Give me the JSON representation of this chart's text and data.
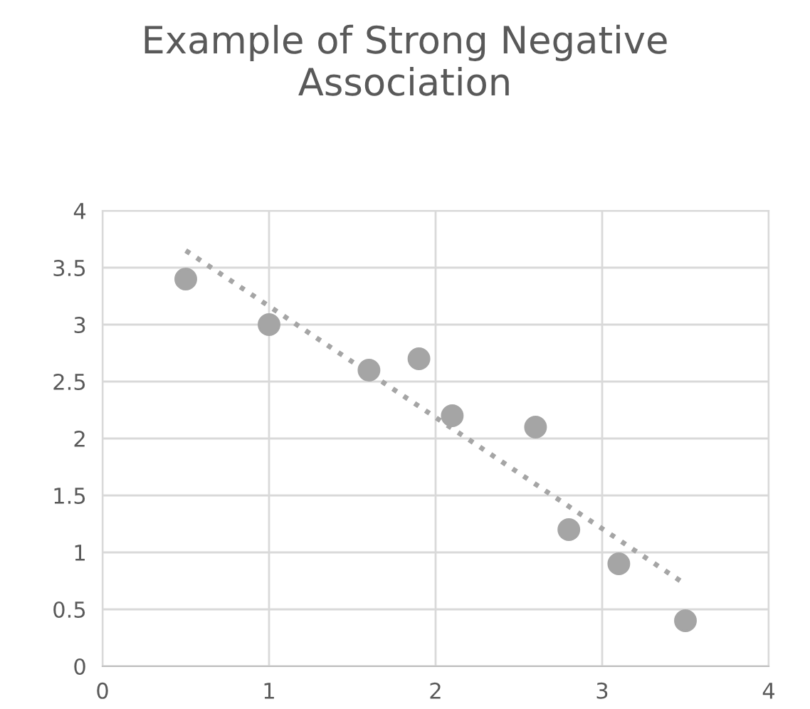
{
  "chart_data": {
    "type": "scatter",
    "title": "Example of Strong Negative Association",
    "series": [
      {
        "color": "#a5a5a5",
        "marker": "circle",
        "x": [
          0.5,
          1,
          1.6,
          1.9,
          2.1,
          2.6,
          2.8,
          3.1,
          3.5
        ],
        "values": [
          3.4,
          3,
          2.6,
          2.7,
          2.2,
          2.1,
          1.2,
          0.9,
          0.4
        ]
      },
      {
        "type": "line",
        "color": "#a5a5a5",
        "line_style": "dotted",
        "marker": "none",
        "x": [
          0.5,
          3.5
        ],
        "values": [
          3.65,
          0.72
        ]
      }
    ],
    "xlim": [
      0,
      4
    ],
    "xticks": [
      0,
      1,
      2,
      3,
      4
    ],
    "ylim": [
      0,
      4
    ],
    "yticks": [
      0,
      0.5,
      1,
      1.5,
      2,
      2.5,
      3,
      3.5,
      4
    ],
    "grid": true
  }
}
